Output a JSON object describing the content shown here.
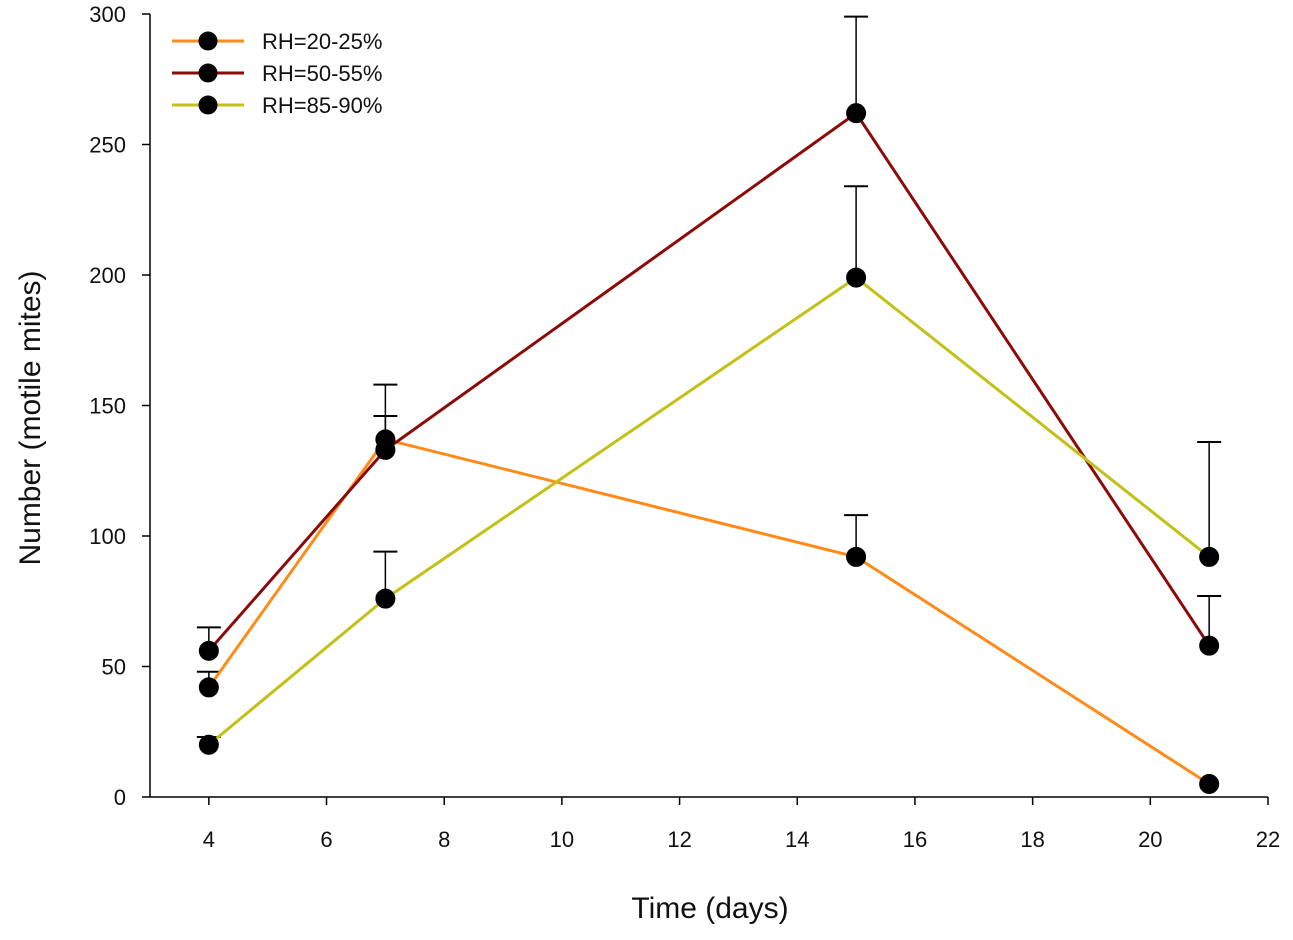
{
  "chart_data": {
    "type": "line",
    "title": "",
    "xlabel": "Time (days)",
    "ylabel": "Number (motile mites)",
    "xlim": [
      3,
      22
    ],
    "ylim": [
      0,
      300
    ],
    "xticks": [
      4,
      6,
      8,
      10,
      12,
      14,
      16,
      18,
      20,
      22
    ],
    "yticks": [
      0,
      50,
      100,
      150,
      200,
      250,
      300
    ],
    "grid": false,
    "legend_position": "top-left",
    "x": [
      4,
      7,
      15,
      21
    ],
    "series": [
      {
        "name": "RH=20-25%",
        "color": "#ff8c1a",
        "values": [
          42,
          137,
          92,
          5
        ],
        "error_upper": [
          48,
          146,
          108,
          null
        ]
      },
      {
        "name": "RH=50-55%",
        "color": "#8b0a0a",
        "values": [
          56,
          133,
          262,
          58
        ],
        "error_upper": [
          65,
          158,
          299,
          77
        ]
      },
      {
        "name": "RH=85-90%",
        "color": "#c3c018",
        "values": [
          20,
          76,
          199,
          92
        ],
        "error_upper": [
          23,
          94,
          234,
          136
        ]
      }
    ]
  }
}
